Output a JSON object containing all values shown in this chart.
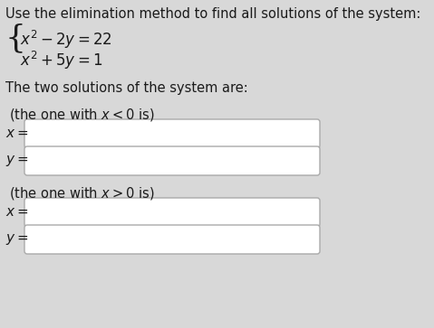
{
  "title_line1": "Use the elimination method to find all solutions of the system:",
  "eq1": "$x^2 - 2y = 22$",
  "eq2": "$x^2 + 5y = 1$",
  "solutions_label": "The two solutions of the system are:",
  "label_x_lt0": "(the one with $x < 0$ is)",
  "label_x_gt0": "(the one with $x > 0$ is)",
  "x_label": "$x =$",
  "y_label": "$y =$",
  "bg_color": "#d8d8d8",
  "text_color": "#1a1a1a",
  "box_edge": "#aaaaaa",
  "font_size_title": 10.5,
  "font_size_eq": 12,
  "font_size_label": 10.5,
  "font_size_var": 11
}
